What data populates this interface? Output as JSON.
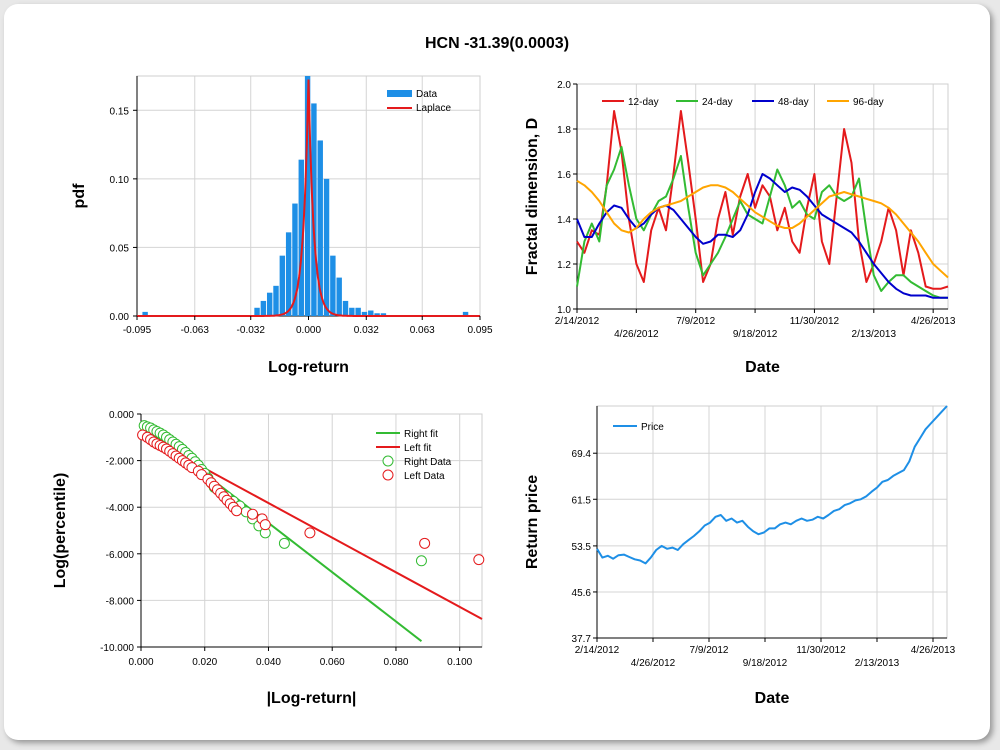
{
  "title": "HCN -31.39(0.0003)",
  "chart_data": [
    {
      "id": "hist",
      "type": "bar",
      "xlabel": "Log-return",
      "ylabel": "pdf",
      "xlim": [
        -0.095,
        0.095
      ],
      "ylim": [
        0,
        0.175
      ],
      "xticks": [
        "-0.095",
        "-0.063",
        "-0.032",
        "0.000",
        "0.032",
        "0.063",
        "0.095"
      ],
      "yticks": [
        "0.00",
        "0.05",
        "0.10",
        "0.15"
      ],
      "legend": [
        "Data",
        "Laplace"
      ],
      "colors": {
        "bar": "#1e8fe6",
        "fit": "#e41a1c"
      },
      "bins": [
        [
          -0.0905,
          0.003
        ],
        [
          -0.0285,
          0.006
        ],
        [
          -0.025,
          0.011
        ],
        [
          -0.0215,
          0.017
        ],
        [
          -0.018,
          0.022
        ],
        [
          -0.0145,
          0.044
        ],
        [
          -0.011,
          0.061
        ],
        [
          -0.0075,
          0.082
        ],
        [
          -0.004,
          0.114
        ],
        [
          -0.0005,
          0.175
        ],
        [
          0.003,
          0.155
        ],
        [
          0.0065,
          0.128
        ],
        [
          0.01,
          0.1
        ],
        [
          0.0135,
          0.044
        ],
        [
          0.017,
          0.028
        ],
        [
          0.0205,
          0.011
        ],
        [
          0.024,
          0.006
        ],
        [
          0.0275,
          0.006
        ],
        [
          0.031,
          0.003
        ],
        [
          0.0345,
          0.004
        ],
        [
          0.038,
          0.002
        ],
        [
          0.0415,
          0.002
        ],
        [
          0.087,
          0.003
        ]
      ],
      "laplace": {
        "mu": 0.0,
        "b": 0.0029
      }
    },
    {
      "id": "fractal",
      "type": "line",
      "xlabel": "Date",
      "ylabel": "Fractal dimension, D",
      "ylim": [
        1.0,
        2.0
      ],
      "yticks": [
        "1.0",
        "1.2",
        "1.4",
        "1.6",
        "1.8",
        "2.0"
      ],
      "xticks_top": [
        "2/14/2012",
        "7/9/2012",
        "11/30/2012",
        "4/26/2013"
      ],
      "xticks_bottom": [
        "4/26/2012",
        "9/18/2012",
        "2/13/2013"
      ],
      "series": [
        {
          "name": "12-day",
          "color": "#e41a1c",
          "values": [
            1.3,
            1.25,
            1.35,
            1.33,
            1.55,
            1.88,
            1.7,
            1.4,
            1.2,
            1.12,
            1.35,
            1.45,
            1.35,
            1.6,
            1.88,
            1.65,
            1.4,
            1.12,
            1.2,
            1.4,
            1.52,
            1.33,
            1.5,
            1.6,
            1.45,
            1.55,
            1.5,
            1.35,
            1.45,
            1.3,
            1.25,
            1.45,
            1.6,
            1.3,
            1.2,
            1.5,
            1.8,
            1.65,
            1.3,
            1.12,
            1.2,
            1.3,
            1.45,
            1.35,
            1.15,
            1.35,
            1.25,
            1.1,
            1.09,
            1.09,
            1.1
          ]
        },
        {
          "name": "24-day",
          "color": "#33bb33",
          "values": [
            1.1,
            1.3,
            1.38,
            1.3,
            1.55,
            1.62,
            1.72,
            1.55,
            1.4,
            1.35,
            1.42,
            1.48,
            1.5,
            1.58,
            1.68,
            1.45,
            1.25,
            1.15,
            1.2,
            1.25,
            1.32,
            1.4,
            1.48,
            1.42,
            1.4,
            1.38,
            1.5,
            1.62,
            1.55,
            1.45,
            1.48,
            1.42,
            1.4,
            1.52,
            1.55,
            1.5,
            1.48,
            1.5,
            1.58,
            1.35,
            1.15,
            1.08,
            1.12,
            1.15,
            1.15,
            1.12,
            1.1,
            1.08,
            1.06,
            1.05,
            1.05
          ]
        },
        {
          "name": "48-day",
          "color": "#0000cc",
          "values": [
            1.4,
            1.32,
            1.32,
            1.38,
            1.43,
            1.46,
            1.45,
            1.4,
            1.36,
            1.38,
            1.42,
            1.45,
            1.46,
            1.44,
            1.4,
            1.36,
            1.32,
            1.29,
            1.3,
            1.33,
            1.33,
            1.32,
            1.35,
            1.42,
            1.52,
            1.6,
            1.58,
            1.55,
            1.52,
            1.54,
            1.53,
            1.5,
            1.46,
            1.42,
            1.4,
            1.38,
            1.36,
            1.34,
            1.3,
            1.25,
            1.2,
            1.16,
            1.12,
            1.09,
            1.07,
            1.06,
            1.06,
            1.06,
            1.05,
            1.05,
            1.05
          ]
        },
        {
          "name": "96-day",
          "color": "#ffa500",
          "values": [
            1.57,
            1.55,
            1.52,
            1.48,
            1.43,
            1.38,
            1.35,
            1.34,
            1.36,
            1.4,
            1.43,
            1.45,
            1.46,
            1.47,
            1.48,
            1.5,
            1.52,
            1.54,
            1.55,
            1.55,
            1.54,
            1.52,
            1.49,
            1.46,
            1.43,
            1.41,
            1.39,
            1.37,
            1.36,
            1.36,
            1.38,
            1.41,
            1.44,
            1.47,
            1.5,
            1.51,
            1.52,
            1.51,
            1.5,
            1.49,
            1.48,
            1.47,
            1.45,
            1.42,
            1.38,
            1.34,
            1.3,
            1.25,
            1.2,
            1.17,
            1.14
          ]
        }
      ]
    },
    {
      "id": "tail",
      "type": "scatter",
      "xlabel": "|Log-return|",
      "ylabel": "Log(percentile)",
      "xlim": [
        0,
        0.107
      ],
      "ylim": [
        -10,
        0
      ],
      "xticks": [
        "0.000",
        "0.020",
        "0.040",
        "0.060",
        "0.080",
        "0.100"
      ],
      "yticks": [
        "0.000",
        "-2.000",
        "-4.000",
        "-6.000",
        "-8.000",
        "-10.000"
      ],
      "legend": [
        "Right fit",
        "Left fit",
        "Right Data",
        "Left Data"
      ],
      "right_fit": {
        "color": "#33bb33",
        "from": [
          0.0,
          -0.45
        ],
        "to": [
          0.088,
          -9.75
        ]
      },
      "left_fit": {
        "color": "#e41a1c",
        "from": [
          0.0,
          -0.85
        ],
        "to": [
          0.107,
          -8.8
        ]
      },
      "right_data": [
        [
          0.001,
          -0.5
        ],
        [
          0.002,
          -0.55
        ],
        [
          0.003,
          -0.6
        ],
        [
          0.004,
          -0.68
        ],
        [
          0.005,
          -0.75
        ],
        [
          0.006,
          -0.82
        ],
        [
          0.007,
          -0.9
        ],
        [
          0.008,
          -1.0
        ],
        [
          0.009,
          -1.1
        ],
        [
          0.01,
          -1.2
        ],
        [
          0.011,
          -1.3
        ],
        [
          0.012,
          -1.4
        ],
        [
          0.013,
          -1.52
        ],
        [
          0.014,
          -1.65
        ],
        [
          0.015,
          -1.78
        ],
        [
          0.016,
          -1.9
        ],
        [
          0.017,
          -2.05
        ],
        [
          0.018,
          -2.2
        ],
        [
          0.019,
          -2.38
        ],
        [
          0.02,
          -2.55
        ],
        [
          0.021,
          -2.75
        ],
        [
          0.022,
          -2.95
        ],
        [
          0.023,
          -3.15
        ],
        [
          0.025,
          -3.35
        ],
        [
          0.027,
          -3.55
        ],
        [
          0.029,
          -3.75
        ],
        [
          0.031,
          -3.95
        ],
        [
          0.033,
          -4.2
        ],
        [
          0.035,
          -4.5
        ],
        [
          0.037,
          -4.8
        ],
        [
          0.039,
          -5.1
        ],
        [
          0.045,
          -5.55
        ],
        [
          0.088,
          -6.3
        ]
      ],
      "left_data": [
        [
          0.0005,
          -0.9
        ],
        [
          0.002,
          -1.0
        ],
        [
          0.003,
          -1.1
        ],
        [
          0.004,
          -1.2
        ],
        [
          0.005,
          -1.28
        ],
        [
          0.006,
          -1.35
        ],
        [
          0.007,
          -1.42
        ],
        [
          0.008,
          -1.5
        ],
        [
          0.009,
          -1.6
        ],
        [
          0.01,
          -1.7
        ],
        [
          0.011,
          -1.8
        ],
        [
          0.012,
          -1.9
        ],
        [
          0.013,
          -2.0
        ],
        [
          0.014,
          -2.1
        ],
        [
          0.015,
          -2.2
        ],
        [
          0.016,
          -2.3
        ],
        [
          0.018,
          -2.45
        ],
        [
          0.019,
          -2.6
        ],
        [
          0.021,
          -2.8
        ],
        [
          0.022,
          -2.95
        ],
        [
          0.023,
          -3.1
        ],
        [
          0.024,
          -3.25
        ],
        [
          0.025,
          -3.4
        ],
        [
          0.026,
          -3.55
        ],
        [
          0.027,
          -3.7
        ],
        [
          0.028,
          -3.85
        ],
        [
          0.029,
          -4.0
        ],
        [
          0.03,
          -4.15
        ],
        [
          0.035,
          -4.3
        ],
        [
          0.038,
          -4.5
        ],
        [
          0.039,
          -4.75
        ],
        [
          0.053,
          -5.1
        ],
        [
          0.089,
          -5.55
        ],
        [
          0.106,
          -6.25
        ]
      ]
    },
    {
      "id": "price",
      "type": "line",
      "xlabel": "Date",
      "ylabel": "Return price",
      "ylim": [
        37.7,
        77.5
      ],
      "yticks": [
        "37.7",
        "45.6",
        "53.5",
        "61.5",
        "69.4"
      ],
      "ytick_values": [
        37.7,
        45.6,
        53.5,
        61.5,
        69.4
      ],
      "xticks_top": [
        "2/14/2012",
        "7/9/2012",
        "11/30/2012",
        "4/26/2013"
      ],
      "xticks_bottom": [
        "4/26/2012",
        "9/18/2012",
        "2/13/2013"
      ],
      "series": [
        {
          "name": "Price",
          "color": "#1e8fe6",
          "values": [
            53.0,
            51.5,
            51.8,
            51.3,
            51.9,
            52.0,
            51.6,
            51.2,
            51.0,
            50.5,
            51.5,
            52.8,
            53.5,
            53.0,
            53.2,
            52.8,
            53.8,
            54.5,
            55.2,
            56.0,
            57.0,
            57.5,
            58.5,
            58.8,
            57.8,
            58.2,
            57.5,
            57.8,
            56.8,
            56.0,
            55.5,
            55.8,
            56.5,
            56.5,
            57.2,
            57.5,
            57.2,
            57.8,
            58.2,
            57.8,
            58.0,
            58.5,
            58.2,
            58.8,
            59.5,
            59.8,
            60.5,
            60.8,
            61.3,
            61.5,
            62.0,
            62.8,
            63.5,
            64.5,
            64.8,
            65.5,
            66.0,
            66.5,
            68.0,
            70.5,
            72.0,
            73.5,
            74.5,
            75.5,
            76.5,
            77.5
          ]
        }
      ],
      "legend": [
        "Price"
      ]
    }
  ]
}
